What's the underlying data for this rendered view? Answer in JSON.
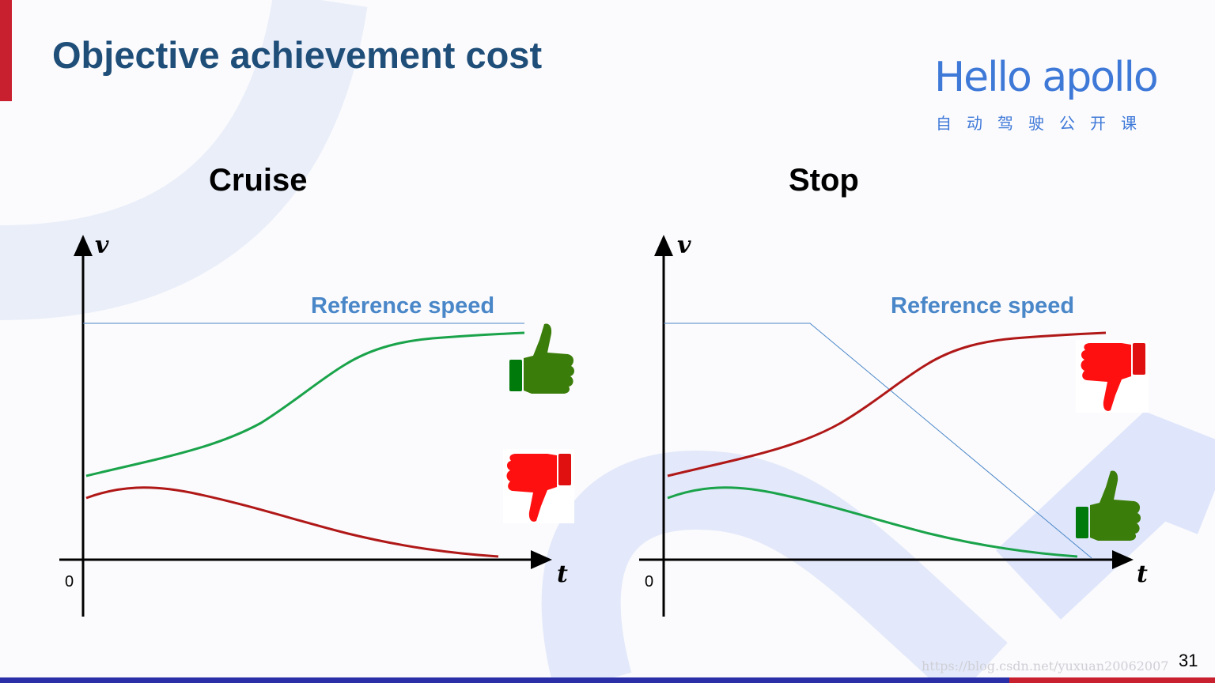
{
  "slide": {
    "title": "Objective achievement cost",
    "page_number": "31",
    "watermark": "https://blog.csdn.net/yuxuan20062007"
  },
  "logo": {
    "text": "Hello apollo",
    "subtitle": "自动驾驶公开课"
  },
  "panels": {
    "cruise": {
      "title": "Cruise",
      "y_axis": "v",
      "x_axis": "t",
      "origin": "0",
      "reference_label": "Reference speed",
      "good_curve_color": "#1aa34a",
      "bad_curve_color": "#b01818"
    },
    "stop": {
      "title": "Stop",
      "y_axis": "v",
      "x_axis": "t",
      "origin": "0",
      "reference_label": "Reference speed",
      "good_curve_color": "#1aa34a",
      "bad_curve_color": "#b01818"
    }
  },
  "icons": {
    "good": "thumbs-up-icon",
    "bad": "thumbs-down-icon",
    "good_color": "#3b7d0a",
    "bad_color": "#ff1010"
  }
}
